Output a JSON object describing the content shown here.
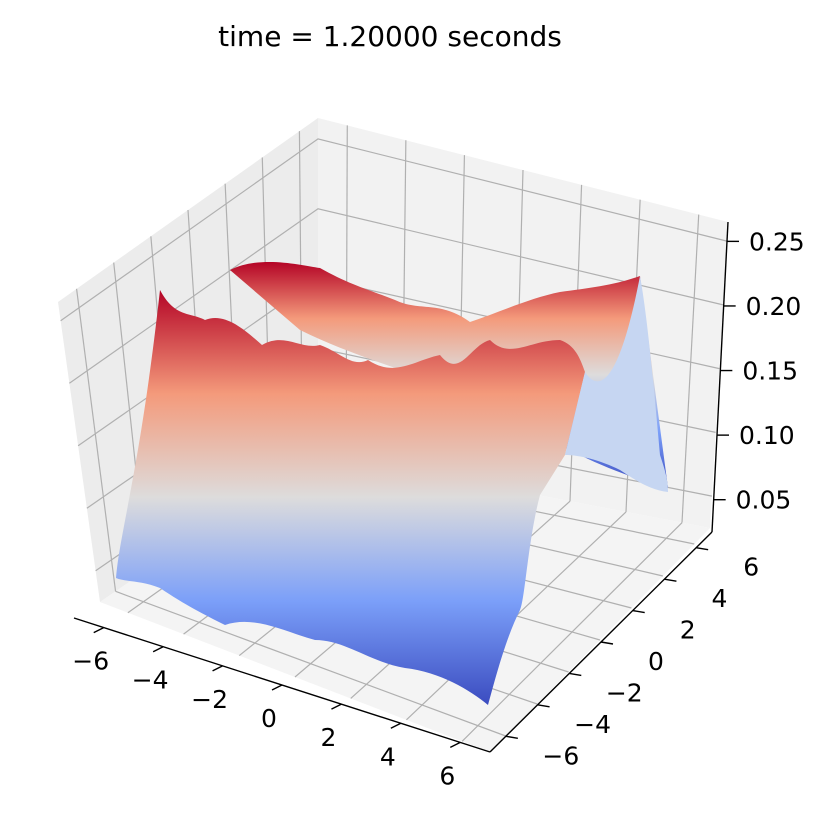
{
  "chart_data": {
    "type": "surface",
    "title": "time = 1.20000 seconds",
    "colormap": "coolwarm",
    "colormap_low": "#3b4cc0",
    "colormap_mid": "#dddddd",
    "colormap_high": "#b40426",
    "grid": true,
    "x_ticks": [
      "−6",
      "−4",
      "−2",
      "0",
      "2",
      "4",
      "6"
    ],
    "y_ticks": [
      "−6",
      "−4",
      "−2",
      "0",
      "2",
      "4",
      "6"
    ],
    "z_ticks": [
      "0.05",
      "0.10",
      "0.15",
      "0.20",
      "0.25"
    ],
    "xlim": [
      -7,
      7
    ],
    "ylim": [
      -7,
      7
    ],
    "zlim": [
      0.025,
      0.265
    ],
    "surface_description_values": {
      "low_ridge_value": 0.045,
      "high_ridge_value": 0.225,
      "peak_value": 0.26,
      "trough_value": 0.03
    }
  }
}
